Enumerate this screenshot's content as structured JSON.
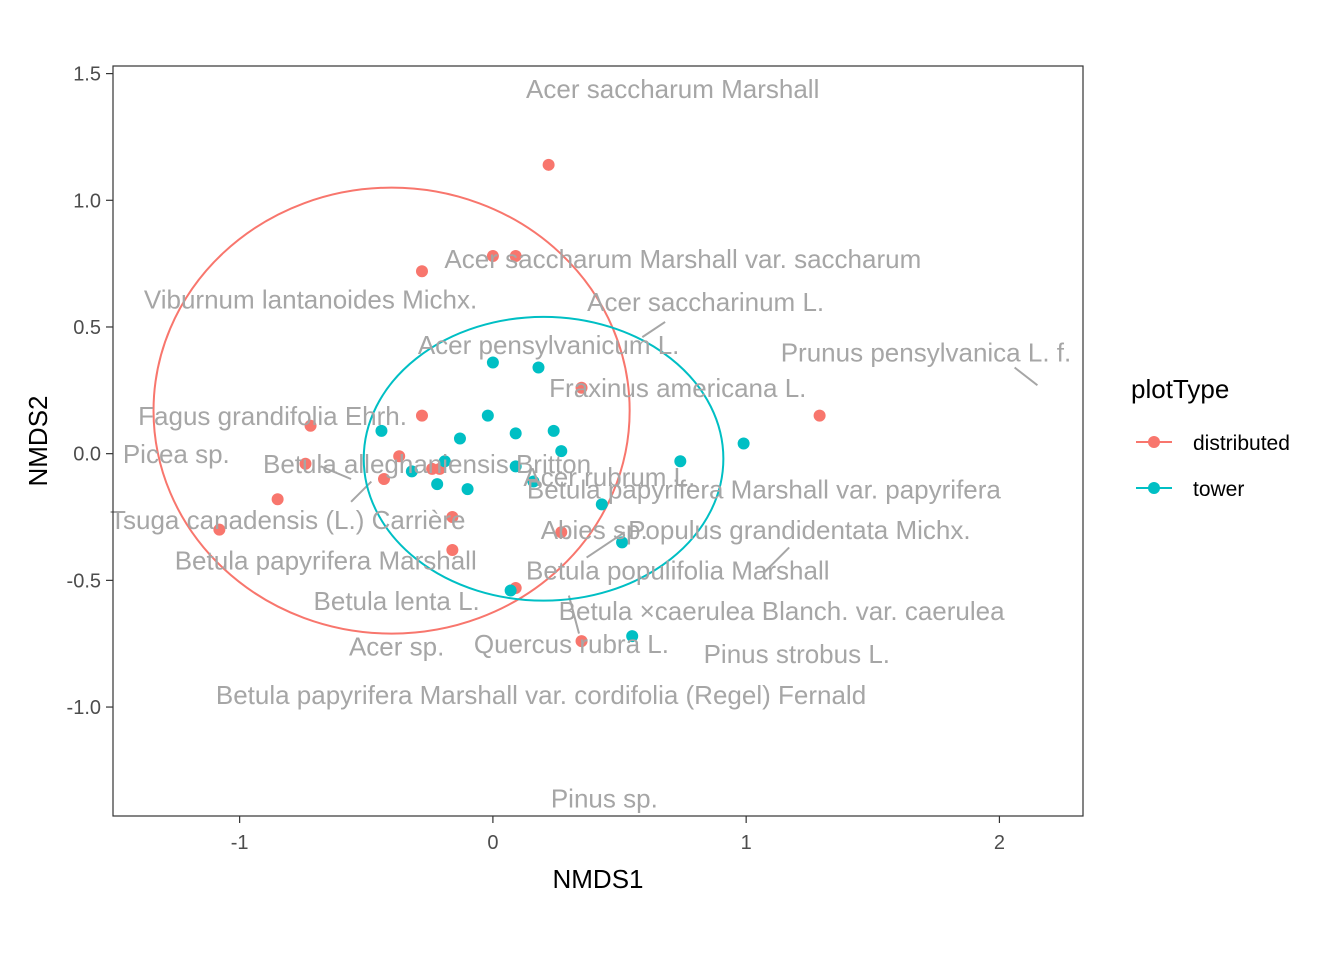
{
  "chart_data": {
    "type": "scatter",
    "xlabel": "NMDS1",
    "ylabel": "NMDS2",
    "xlim": [
      -1.5,
      2.33
    ],
    "ylim": [
      -1.43,
      1.53
    ],
    "xticks": [
      {
        "v": -1,
        "label": "-1"
      },
      {
        "v": 0,
        "label": "0"
      },
      {
        "v": 1,
        "label": "1"
      },
      {
        "v": 2,
        "label": "2"
      }
    ],
    "yticks": [
      {
        "v": -1.0,
        "label": "-1.0"
      },
      {
        "v": -0.5,
        "label": "-0.5"
      },
      {
        "v": 0.0,
        "label": "0.0"
      },
      {
        "v": 0.5,
        "label": "0.5"
      },
      {
        "v": 1.0,
        "label": "1.0"
      },
      {
        "v": 1.5,
        "label": "1.5"
      }
    ],
    "grid": false,
    "legend": {
      "title": "plotType",
      "position": "right",
      "items": [
        {
          "label": "distributed",
          "color": "#F8766D"
        },
        {
          "label": "tower",
          "color": "#00BFC4"
        }
      ]
    },
    "series": [
      {
        "name": "distributed",
        "color": "#F8766D",
        "points": [
          [
            0.22,
            1.14
          ],
          [
            0.0,
            0.78
          ],
          [
            0.09,
            0.78
          ],
          [
            -0.28,
            0.72
          ],
          [
            0.35,
            0.26
          ],
          [
            1.29,
            0.15
          ],
          [
            -0.72,
            0.11
          ],
          [
            -0.28,
            0.15
          ],
          [
            -0.37,
            -0.01
          ],
          [
            -0.74,
            -0.04
          ],
          [
            -0.43,
            -0.1
          ],
          [
            -0.24,
            -0.06
          ],
          [
            -0.21,
            -0.06
          ],
          [
            -0.85,
            -0.18
          ],
          [
            -1.08,
            -0.3
          ],
          [
            -0.16,
            -0.25
          ],
          [
            0.27,
            -0.31
          ],
          [
            -0.16,
            -0.38
          ],
          [
            0.09,
            -0.53
          ],
          [
            0.35,
            -0.74
          ]
        ]
      },
      {
        "name": "tower",
        "color": "#00BFC4",
        "points": [
          [
            0.0,
            0.36
          ],
          [
            0.18,
            0.34
          ],
          [
            -0.02,
            0.15
          ],
          [
            0.09,
            0.08
          ],
          [
            0.24,
            0.09
          ],
          [
            -0.44,
            0.09
          ],
          [
            -0.13,
            0.06
          ],
          [
            0.27,
            0.01
          ],
          [
            0.99,
            0.04
          ],
          [
            -0.19,
            -0.03
          ],
          [
            0.09,
            -0.05
          ],
          [
            -0.32,
            -0.07
          ],
          [
            0.16,
            -0.11
          ],
          [
            -0.22,
            -0.12
          ],
          [
            -0.1,
            -0.14
          ],
          [
            0.74,
            -0.03
          ],
          [
            0.43,
            -0.2
          ],
          [
            0.51,
            -0.35
          ],
          [
            0.07,
            -0.54
          ],
          [
            0.55,
            -0.72
          ]
        ]
      }
    ],
    "ellipses": [
      {
        "series": "distributed",
        "color": "#F8766D",
        "center": [
          -0.4,
          0.17
        ],
        "radii": [
          0.94,
          0.88
        ]
      },
      {
        "series": "tower",
        "color": "#00BFC4",
        "center": [
          0.2,
          -0.02
        ],
        "radii": [
          0.71,
          0.56
        ]
      }
    ],
    "species_labels": [
      {
        "text": "Acer saccharum Marshall",
        "x": 0.71,
        "y": 1.43
      },
      {
        "text": "Acer saccharum Marshall var. saccharum",
        "x": 0.75,
        "y": 0.76
      },
      {
        "text": "Viburnum lantanoides Michx.",
        "x": -0.72,
        "y": 0.6
      },
      {
        "text": "Acer saccharinum L.",
        "x": 0.84,
        "y": 0.59
      },
      {
        "text": "Acer pensylvanicum L.",
        "x": 0.22,
        "y": 0.42
      },
      {
        "text": "Prunus pensylvanica L. f.",
        "x": 1.71,
        "y": 0.39
      },
      {
        "text": "Fraxinus americana L.",
        "x": 0.73,
        "y": 0.25
      },
      {
        "text": "Fagus grandifolia Ehrh.",
        "x": -0.87,
        "y": 0.14
      },
      {
        "text": "Picea sp.",
        "x": -1.25,
        "y": -0.01
      },
      {
        "text": "Betula alleghaniensis Britton",
        "x": -0.26,
        "y": -0.05
      },
      {
        "text": "Acer rubrum L.",
        "x": 0.46,
        "y": -0.1
      },
      {
        "text": "Betula papyrifera Marshall var. papyrifera",
        "x": 1.07,
        "y": -0.15
      },
      {
        "text": "Tsuga canadensis (L.) Carrière",
        "x": -0.81,
        "y": -0.27
      },
      {
        "text": "Abies sp.",
        "x": 0.4,
        "y": -0.31
      },
      {
        "text": "Populus grandidentata Michx.",
        "x": 1.21,
        "y": -0.31
      },
      {
        "text": "Betula papyrifera Marshall",
        "x": -0.66,
        "y": -0.43
      },
      {
        "text": "Betula populifolia Marshall",
        "x": 0.73,
        "y": -0.47
      },
      {
        "text": "Betula lenta L.",
        "x": -0.38,
        "y": -0.59
      },
      {
        "text": "Betula ×caerulea Blanch. var. caerulea",
        "x": 1.14,
        "y": -0.63
      },
      {
        "text": "Acer sp.",
        "x": -0.38,
        "y": -0.77
      },
      {
        "text": "Quercus rubra L.",
        "x": 0.31,
        "y": -0.76
      },
      {
        "text": "Pinus strobus L.",
        "x": 1.2,
        "y": -0.8
      },
      {
        "text": "Betula papyrifera Marshall var. cordifolia (Regel) Fernald",
        "x": 0.19,
        "y": -0.96
      },
      {
        "text": "Pinus sp.",
        "x": 0.44,
        "y": -1.37
      }
    ],
    "leader_lines": [
      [
        [
          0.59,
          0.46
        ],
        [
          0.68,
          0.52
        ]
      ],
      [
        [
          2.15,
          0.27
        ],
        [
          2.06,
          0.34
        ]
      ],
      [
        [
          -0.68,
          -0.05
        ],
        [
          -0.56,
          -0.1
        ]
      ],
      [
        [
          -0.56,
          -0.19
        ],
        [
          -0.48,
          -0.11
        ]
      ],
      [
        [
          0.37,
          -0.41
        ],
        [
          0.52,
          -0.31
        ]
      ],
      [
        [
          1.07,
          -0.47
        ],
        [
          1.17,
          -0.37
        ]
      ],
      [
        [
          0.3,
          -0.56
        ],
        [
          0.34,
          -0.71
        ]
      ]
    ]
  }
}
